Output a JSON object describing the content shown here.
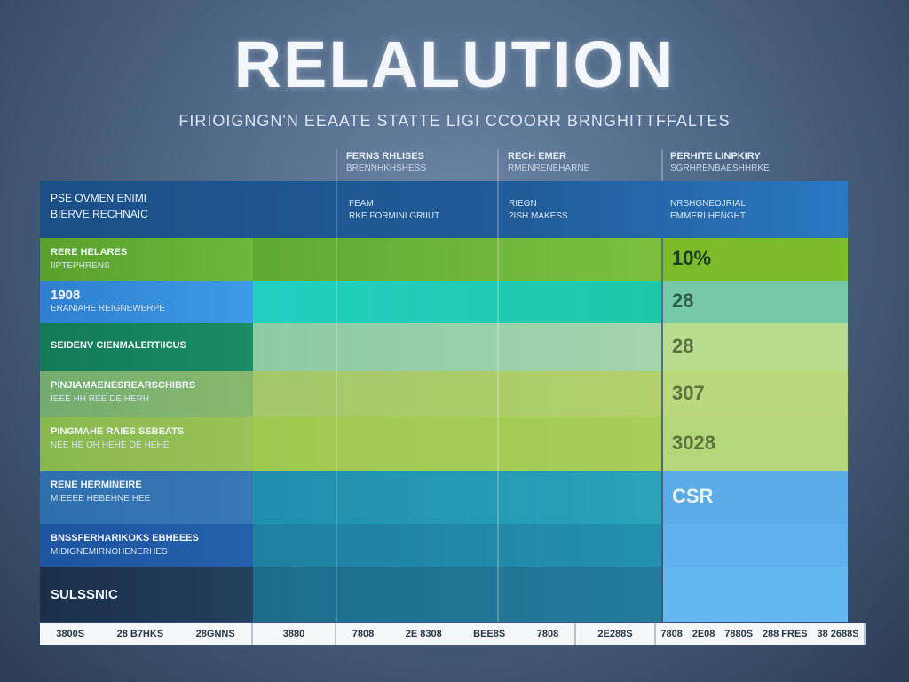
{
  "chart_data": {
    "type": "table",
    "title": "RELALUTION",
    "subtitle": "FIRIOIGNGN'N EEAATE STATTE LIGI CCOORR BRNGHITTFFALTES",
    "columns": [
      {
        "name": "FERNS RHLISES",
        "sub": "BRENNHKHSHESS"
      },
      {
        "name": "RECH EMER",
        "sub": "RMENRENEHARNE"
      },
      {
        "name": "PERHITE LINPKIRY",
        "sub": "SGRHRENBAESHHRKE"
      }
    ],
    "header_row": {
      "label": "PSE OVMEN ENIMI",
      "label2": "BIERVE RECHNAIC",
      "col1_a": "FEAM",
      "col1_b": "RKE FORMINI GRIIUT",
      "col2_a": "RIEGN",
      "col2_b": "2ISH MAKESS",
      "col3_a": "NRSHGNEOJRIAL",
      "col3_b": "EMMERI HENGHT"
    },
    "rows": [
      {
        "label": "RERE HELARES",
        "label2": "IIPTEPHRENS",
        "value": "10%"
      },
      {
        "label": "1908",
        "label2": "ERANIAHE REIGNEWERPE",
        "value": "28"
      },
      {
        "label": "SEIDENV CIENMALERTIICUS",
        "label2": "",
        "value": "28"
      },
      {
        "label": "PINJIAMAENESREARSCHIBRS",
        "label2": "IEEE HH REE DE HERH",
        "value": "307"
      },
      {
        "label": "PINGMAHE RAIES SEBEATS",
        "label2": "NEE HE OH HEHE OE HEHE",
        "value": "3028"
      },
      {
        "label": "RENE HERMINEIRE",
        "label2": "MIEEEE HEBEHNE HEE",
        "value": "CSR"
      },
      {
        "label": "BNSSFERHARIKOKS EBHEEES",
        "label2": "MIDIGNEMIRNOHENERHES",
        "value": ""
      },
      {
        "label": "SULSSNIC",
        "label2": "",
        "value": ""
      }
    ],
    "x_ticks": [
      "3800S",
      "28 B7HKS",
      "28GNNS",
      "3880",
      "7808",
      "2E 8308",
      "BEE8S",
      "7808",
      "2E288S",
      "7808",
      "2E08",
      "7880S",
      "288 FRES",
      "38 2688S"
    ],
    "xlabel": "",
    "ylabel": ""
  }
}
